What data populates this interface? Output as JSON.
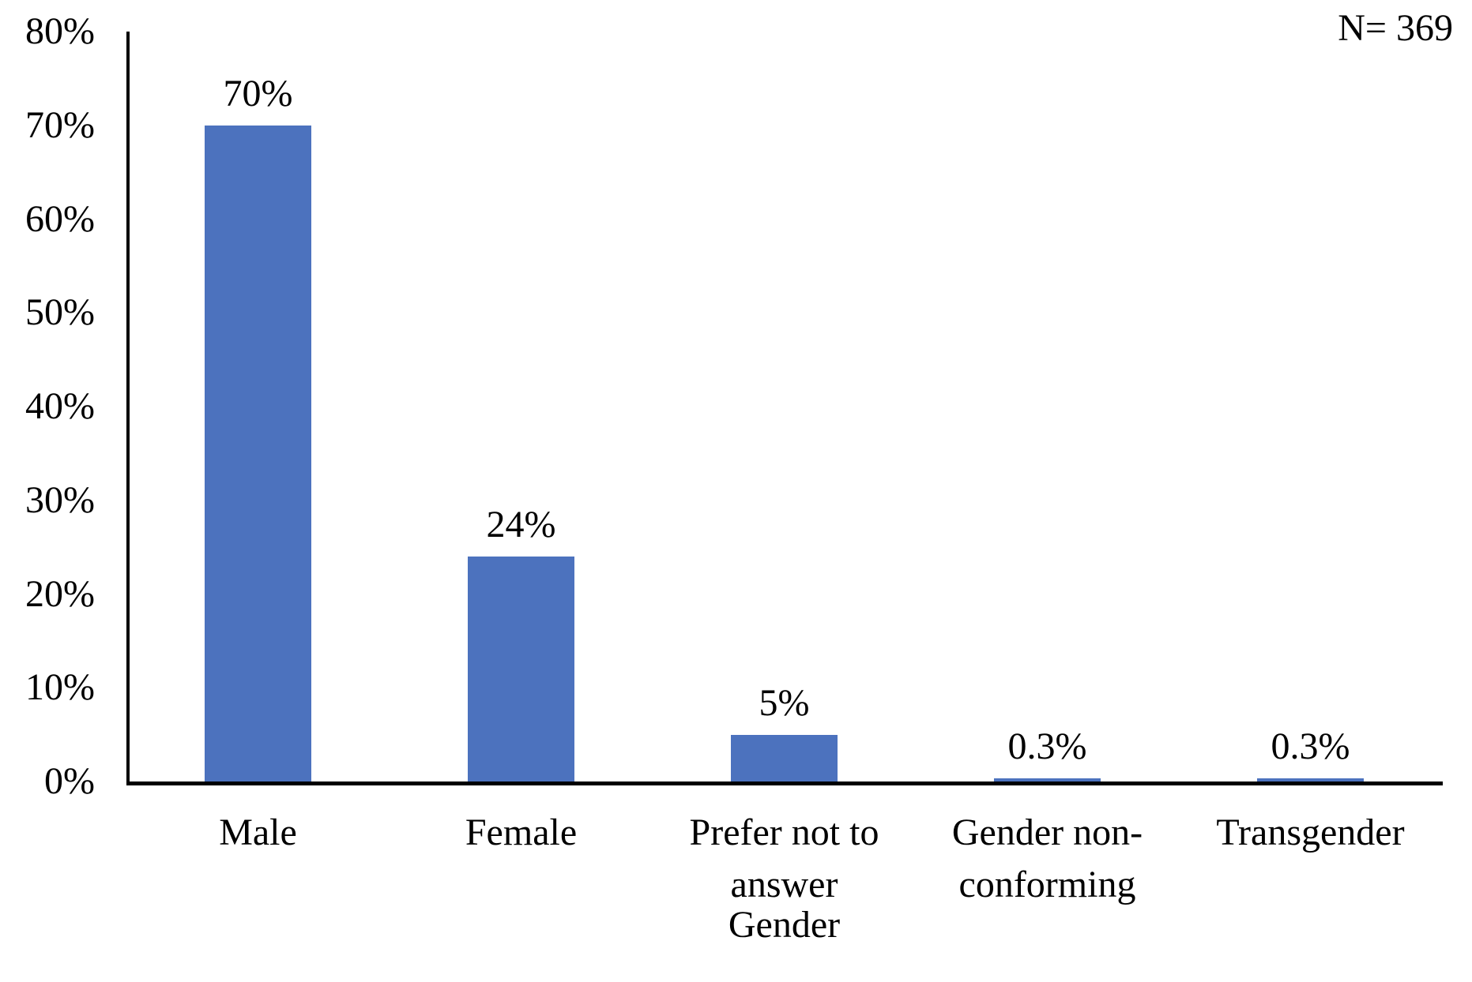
{
  "chart_data": {
    "type": "bar",
    "title": "",
    "n_label": "N= 369",
    "categories": [
      "Male",
      "Female",
      "Prefer not to answer",
      "Gender non-conforming",
      "Transgender"
    ],
    "values": [
      70,
      24,
      5,
      0.3,
      0.3
    ],
    "value_labels": [
      "70%",
      "24%",
      "5%",
      "0.3%",
      "0.3%"
    ],
    "xlabel": "Gender",
    "ylabel": "",
    "ylim": [
      0,
      80
    ],
    "ytick_step": 10,
    "ytick_labels": [
      "0%",
      "10%",
      "20%",
      "30%",
      "40%",
      "50%",
      "60%",
      "70%",
      "80%"
    ],
    "grid": false,
    "legend": false,
    "bar_color": "#4C72BE",
    "axis_color": "#000000",
    "text_color": "#000000"
  }
}
